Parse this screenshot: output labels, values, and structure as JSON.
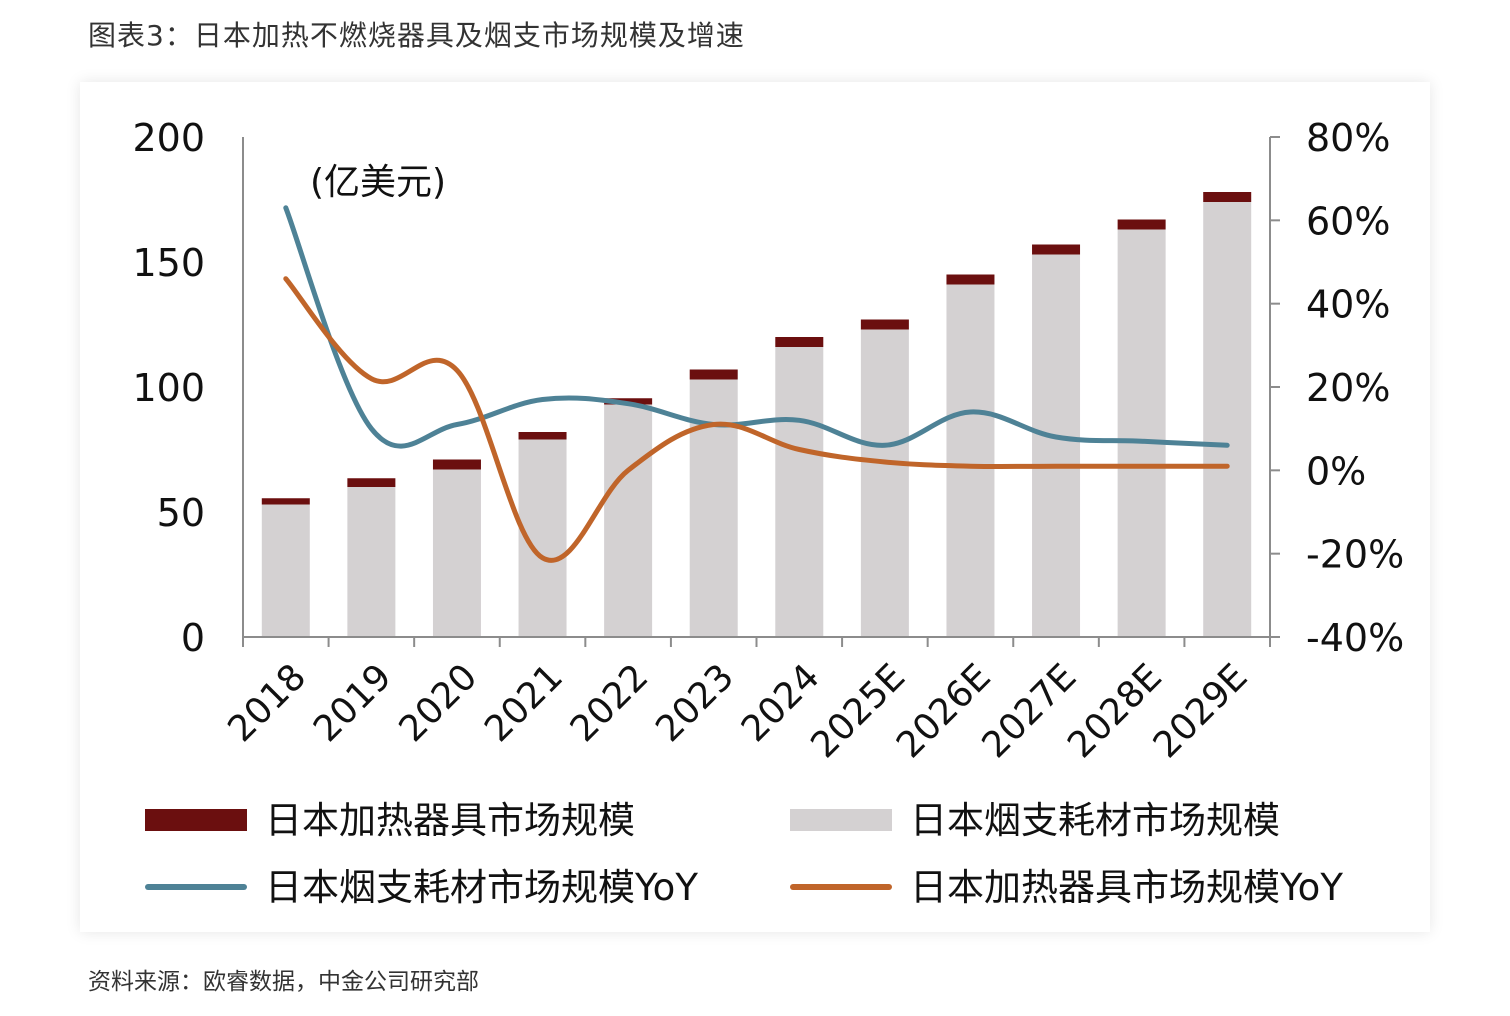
{
  "figure": {
    "title": "图表3：日本加热不燃烧器具及烟支市场规模及增速",
    "source": "资料来源：欧睿数据，中金公司研究部"
  },
  "chart_data": {
    "type": "bar",
    "stacked": true,
    "unit_label": "(亿美元)",
    "categories": [
      "2018",
      "2019",
      "2020",
      "2021",
      "2022",
      "2023",
      "2024",
      "2025E",
      "2026E",
      "2027E",
      "2028E",
      "2029E"
    ],
    "y_left": {
      "min": 0,
      "max": 200,
      "ticks": [
        0,
        50,
        100,
        150,
        200
      ],
      "tick_labels": [
        "0",
        "50",
        "100",
        "150",
        "200"
      ]
    },
    "y_right": {
      "min": -40,
      "max": 80,
      "ticks": [
        -40,
        -20,
        0,
        20,
        40,
        60,
        80
      ],
      "tick_labels": [
        "-40%",
        "-20%",
        "0%",
        "20%",
        "40%",
        "60%",
        "80%"
      ]
    },
    "series": [
      {
        "name": "日本加热器具市场规模",
        "type": "bar",
        "axis": "left",
        "color": "#6b0f0f",
        "values": [
          2.5,
          3.5,
          4,
          3,
          2.5,
          4,
          4,
          4,
          4,
          4,
          4,
          4
        ]
      },
      {
        "name": "日本烟支耗材市场规模",
        "type": "bar",
        "axis": "left",
        "color": "#d4d1d2",
        "values": [
          53,
          60,
          67,
          79,
          93,
          103,
          116,
          123,
          141,
          153,
          163,
          174
        ]
      },
      {
        "name": "日本烟支耗材市场规模YoY",
        "type": "line",
        "axis": "right",
        "color": "#4e8296",
        "values": [
          63,
          10,
          11,
          17,
          16,
          11,
          12,
          6,
          14,
          8,
          7,
          6
        ]
      },
      {
        "name": "日本加热器具市场规模YoY",
        "type": "line",
        "axis": "right",
        "color": "#c0652a",
        "values": [
          46,
          22,
          24,
          -21,
          0,
          11,
          5,
          2,
          1,
          1,
          1,
          1
        ]
      }
    ],
    "legend_position": "bottom",
    "grid": false
  }
}
